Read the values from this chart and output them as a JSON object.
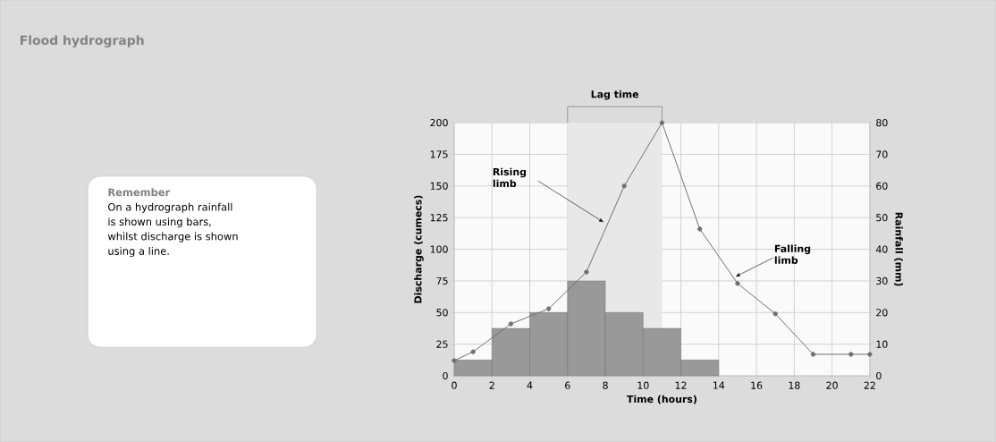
{
  "chart_data": {
    "type": "line",
    "title": "Flood hydrograph",
    "xlabel": "Time (hours)",
    "ylabel": "Discharge (cumecs)",
    "y2label": "Rainfall (mm)",
    "xlim": [
      0,
      22
    ],
    "xticks": [
      0,
      2,
      4,
      6,
      8,
      10,
      12,
      14,
      16,
      18,
      20,
      22
    ],
    "ylim": [
      0,
      200
    ],
    "yticks": [
      0,
      25,
      50,
      75,
      100,
      125,
      150,
      175,
      200
    ],
    "y2lim": [
      0,
      80
    ],
    "y2ticks": [
      0,
      10,
      20,
      30,
      40,
      50,
      60,
      70,
      80
    ],
    "grid": true,
    "marker": "circle",
    "series": [
      {
        "type": "bar",
        "axis": "y2",
        "color": "#999999",
        "x": [
          1,
          3,
          5,
          7,
          9,
          11,
          13
        ],
        "values": [
          5,
          15,
          20,
          30,
          20,
          15,
          5
        ]
      },
      {
        "type": "line",
        "color": "#707070",
        "x": [
          0,
          1,
          3,
          5,
          7,
          9,
          11,
          13,
          15,
          17,
          19,
          21,
          22
        ],
        "values": [
          12,
          19,
          41,
          53,
          82,
          150,
          200,
          116,
          73,
          49,
          17,
          17,
          17
        ]
      }
    ],
    "bands": [
      {
        "axis": "x",
        "from": 6,
        "to": 11,
        "label": "Lag time",
        "color": "#e8e8e8"
      }
    ],
    "annotations": [
      {
        "text": "Rising limb",
        "x": 8,
        "y": 120
      },
      {
        "text": "Falling limb",
        "x": 14.8,
        "y": 77
      },
      "Remember",
      "On a hydrograph rainfall is shown using bars, whilst discharge is shown using a line."
    ]
  }
}
